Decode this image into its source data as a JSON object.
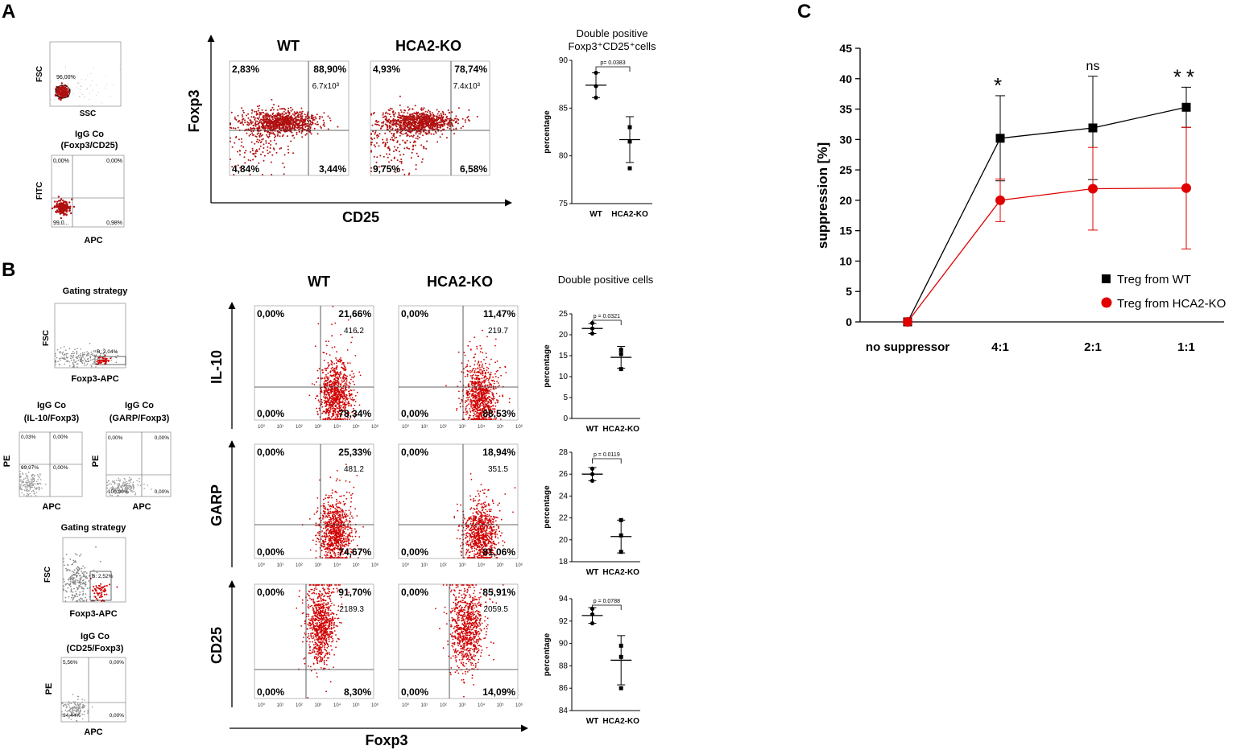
{
  "panels": {
    "A": {
      "label": "A",
      "fsc_plot": {
        "y_label": "FSC",
        "x_label": "SSC",
        "gate_pct": "96,00%"
      },
      "igg_plot": {
        "title1": "IgG Co",
        "title2": "(Foxp3/CD25)",
        "y_label": "FITC",
        "x_label": "APC",
        "q_ul": "0,00%",
        "q_ur": "0,00%",
        "q_ll": "99,0...",
        "q_lr": "0,98%"
      },
      "col_wt": "WT",
      "col_ko": "HCA2-KO",
      "y_axis_label": "Foxp3",
      "x_axis_label": "CD25",
      "wt": {
        "ul": "2,83%",
        "ur": "88,90%",
        "mfi": "6.7x10³",
        "ll": "4,84%",
        "lr": "3,44%"
      },
      "ko": {
        "ul": "4,93%",
        "ur": "78,74%",
        "mfi": "7.4x10³",
        "ll": "9,75%",
        "lr": "6,58%"
      }
    },
    "B": {
      "label": "B",
      "gating1": {
        "title": "Gating strategy",
        "y_label": "FSC",
        "x_label": "Foxp3-APC",
        "gate": "B: 2,04%"
      },
      "igg_il10": {
        "title1": "IgG Co",
        "title2": "(IL-10/Foxp3)",
        "y_label": "PE",
        "x_label": "APC",
        "q_ul": "0,03%",
        "q_ur": "0,00%",
        "q_ll": "99,97%",
        "q_lr": "0,00%"
      },
      "igg_garp": {
        "title1": "IgG Co",
        "title2": "(GARP/Foxp3)",
        "y_label": "PE",
        "x_label": "APC",
        "q_ul": "0,00%",
        "q_ur": "0,00%",
        "q_ll": "100,00%",
        "q_lr": "0,00%"
      },
      "gating2": {
        "title": "Gating strategy",
        "y_label": "FSC",
        "x_label": "Foxp3-APC",
        "gate": "B: 2,52%"
      },
      "igg_cd25": {
        "title1": "IgG Co",
        "title2": "(CD25/Foxp3)",
        "y_label": "PE",
        "x_label": "APC",
        "q_ul": "5,56%",
        "q_ur": "0,00%",
        "q_ll": "94,44%",
        "q_lr": "0,00%"
      },
      "col_wt": "WT",
      "col_ko": "HCA2-KO",
      "x_axis_label": "Foxp3",
      "rows": [
        {
          "label": "IL-10",
          "wt": {
            "ul": "0,00%",
            "ur": "21,66%",
            "mfi": "416.2",
            "ll": "0,00%",
            "lr": "78,34%"
          },
          "ko": {
            "ul": "0,00%",
            "ur": "11,47%",
            "mfi": "219.7",
            "ll": "0,00%",
            "lr": "88,53%"
          }
        },
        {
          "label": "GARP",
          "wt": {
            "ul": "0,00%",
            "ur": "25,33%",
            "mfi": "481.2",
            "ll": "0,00%",
            "lr": "74,67%"
          },
          "ko": {
            "ul": "0,00%",
            "ur": "18,94%",
            "mfi": "351.5",
            "ll": "0,00%",
            "lr": "81,06%"
          }
        },
        {
          "label": "CD25",
          "wt": {
            "ul": "0,00%",
            "ur": "91,70%",
            "mfi": "2189.3",
            "ll": "0,00%",
            "lr": "8,30%"
          },
          "ko": {
            "ul": "0,00%",
            "ur": "85,91%",
            "mfi": "2059.5",
            "ll": "0,00%",
            "lr": "14,09%"
          }
        }
      ]
    },
    "C": {
      "label": "C"
    }
  },
  "colors": {
    "red": "#d00000",
    "dark_red": "#b01010",
    "black": "#000000",
    "gray": "#888888"
  },
  "chart_data": [
    {
      "id": "A-dotplot",
      "type": "scatter",
      "title": "Double positive Foxp3⁺CD25⁺cells",
      "ylabel": "percentage",
      "categories": [
        "WT",
        "HCA2-KO"
      ],
      "ylim": [
        75,
        90
      ],
      "yticks": [
        75,
        80,
        85,
        90
      ],
      "pvalue": "p= 0.0383",
      "series": [
        {
          "name": "WT",
          "points": [
            88.7,
            87.3,
            86.1
          ],
          "mean": 87.4,
          "sd": 1.3
        },
        {
          "name": "HCA2-KO",
          "points": [
            83.0,
            81.5,
            78.7
          ],
          "mean": 81.7,
          "sd": 2.4
        }
      ]
    },
    {
      "id": "B-IL10",
      "type": "scatter",
      "title": "Double positive cells",
      "ylabel": "percentage",
      "categories": [
        "WT",
        "HCA2-KO"
      ],
      "ylim": [
        0,
        25
      ],
      "yticks": [
        0,
        5,
        10,
        15,
        20,
        25
      ],
      "pvalue": "p = 0.0321",
      "series": [
        {
          "name": "WT",
          "points": [
            22.8,
            21.5,
            20.3
          ],
          "mean": 21.5,
          "sd": 1.2
        },
        {
          "name": "HCA2-KO",
          "points": [
            16.4,
            15.4,
            11.8
          ],
          "mean": 14.6,
          "sd": 2.6
        }
      ]
    },
    {
      "id": "B-GARP",
      "type": "scatter",
      "title": "",
      "ylabel": "percentage",
      "categories": [
        "WT",
        "HCA2-KO"
      ],
      "ylim": [
        18,
        28
      ],
      "yticks": [
        18,
        20,
        22,
        24,
        26,
        28
      ],
      "pvalue": "p = 0.0119",
      "series": [
        {
          "name": "WT",
          "points": [
            26.5,
            26.0,
            25.4
          ],
          "mean": 26.0,
          "sd": 0.6
        },
        {
          "name": "HCA2-KO",
          "points": [
            21.8,
            20.4,
            18.9
          ],
          "mean": 20.3,
          "sd": 1.5
        }
      ]
    },
    {
      "id": "B-CD25",
      "type": "scatter",
      "title": "",
      "ylabel": "percentage",
      "categories": [
        "WT",
        "HCA2-KO"
      ],
      "ylim": [
        84,
        94
      ],
      "yticks": [
        84,
        86,
        88,
        90,
        92,
        94
      ],
      "pvalue": "p = 0.0788",
      "series": [
        {
          "name": "WT",
          "points": [
            93.1,
            92.6,
            91.8
          ],
          "mean": 92.5,
          "sd": 0.7
        },
        {
          "name": "HCA2-KO",
          "points": [
            89.8,
            88.8,
            86.0
          ],
          "mean": 88.5,
          "sd": 2.2
        }
      ]
    },
    {
      "id": "C-suppression",
      "type": "line",
      "ylabel": "suppression [%]",
      "categories": [
        "no suppressor",
        "4:1",
        "2:1",
        "1:1"
      ],
      "ylim": [
        0,
        45
      ],
      "yticks": [
        0,
        5,
        10,
        15,
        20,
        25,
        30,
        35,
        40,
        45
      ],
      "significance": [
        "",
        "*",
        "ns",
        "**"
      ],
      "legend_position": "bottom-right",
      "series": [
        {
          "name": "Treg from WT",
          "color": "#000000",
          "marker": "square",
          "values": [
            0,
            30.2,
            31.9,
            35.3
          ],
          "err": [
            0,
            7.0,
            8.5,
            3.3
          ]
        },
        {
          "name": "Treg from HCA2-KO",
          "color": "#e00000",
          "marker": "circle",
          "values": [
            0,
            20.0,
            21.9,
            22.0
          ],
          "err": [
            0,
            3.5,
            6.8,
            10.0
          ]
        }
      ]
    }
  ]
}
